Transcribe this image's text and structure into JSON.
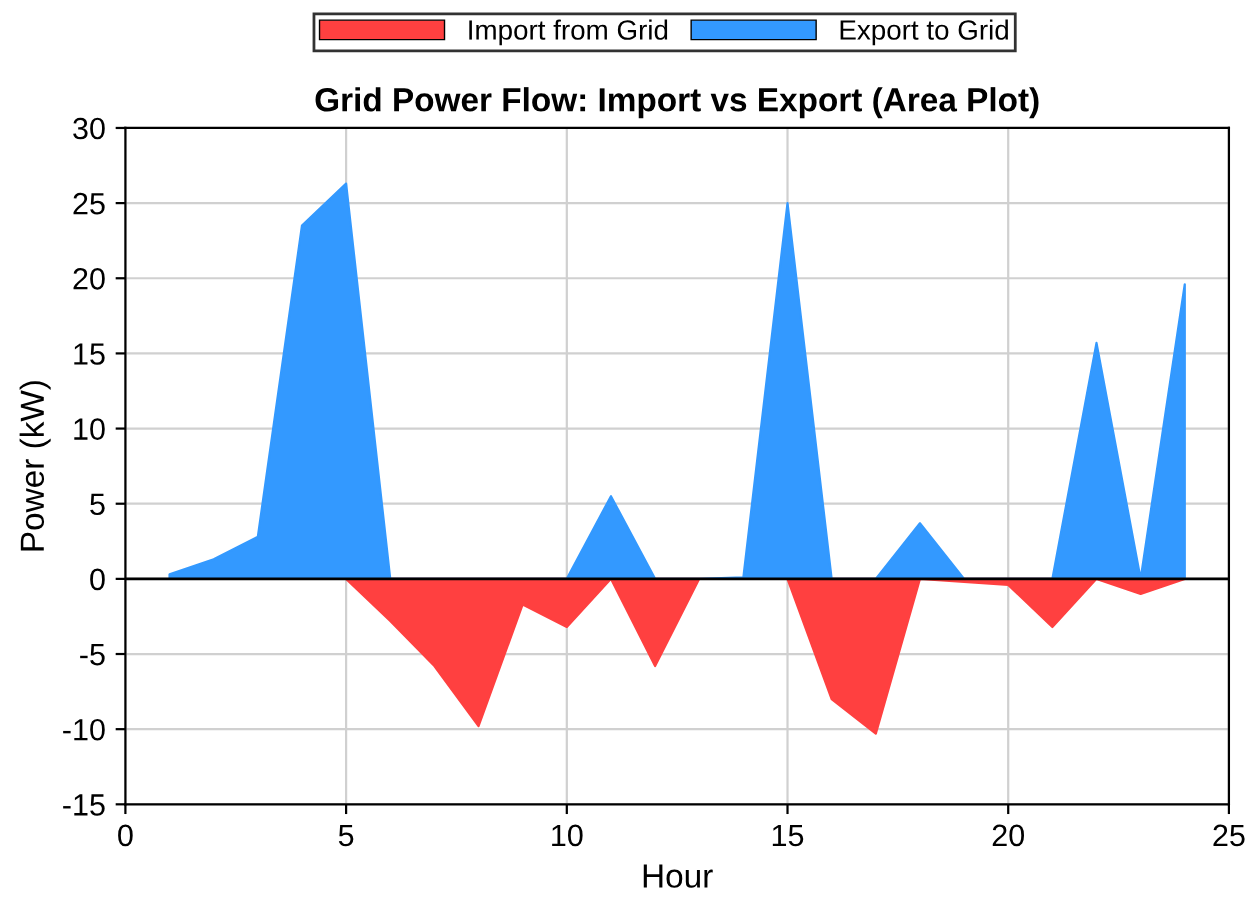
{
  "chart_data": {
    "type": "area",
    "title": "Grid Power Flow: Import vs Export (Area Plot)",
    "xlabel": "Hour",
    "ylabel": "Power (kW)",
    "x": [
      1,
      2,
      3,
      4,
      5,
      6,
      7,
      8,
      9,
      10,
      11,
      12,
      13,
      14,
      15,
      16,
      17,
      18,
      19,
      20,
      21,
      22,
      23,
      24
    ],
    "series": [
      {
        "name": "Import from Grid",
        "color": "#ff4040",
        "values": [
          0,
          0,
          0,
          0,
          0,
          -2.8,
          -5.8,
          -9.8,
          -1.7,
          -3.2,
          0,
          -5.8,
          0,
          0,
          0,
          -8,
          -10.3,
          0,
          -0.2,
          -0.4,
          -3.2,
          0,
          -1,
          0
        ]
      },
      {
        "name": "Export to Grid",
        "color": "#3399ff",
        "values": [
          0.3,
          1.3,
          2.8,
          23.5,
          26.3,
          0,
          0,
          0,
          0,
          0,
          5.5,
          0,
          0,
          0.1,
          25,
          0,
          0,
          3.7,
          0,
          0,
          0,
          15.7,
          0,
          19.6
        ]
      }
    ],
    "xlim": [
      0,
      25
    ],
    "ylim": [
      -15,
      30
    ],
    "xticks": [
      0,
      5,
      10,
      15,
      20,
      25
    ],
    "yticks": [
      -15,
      -10,
      -5,
      0,
      5,
      10,
      15,
      20,
      25,
      30
    ],
    "ref_lines": [
      {
        "axis": "y",
        "value": 0,
        "color": "#000000"
      }
    ],
    "grid": true,
    "legend": "top"
  }
}
